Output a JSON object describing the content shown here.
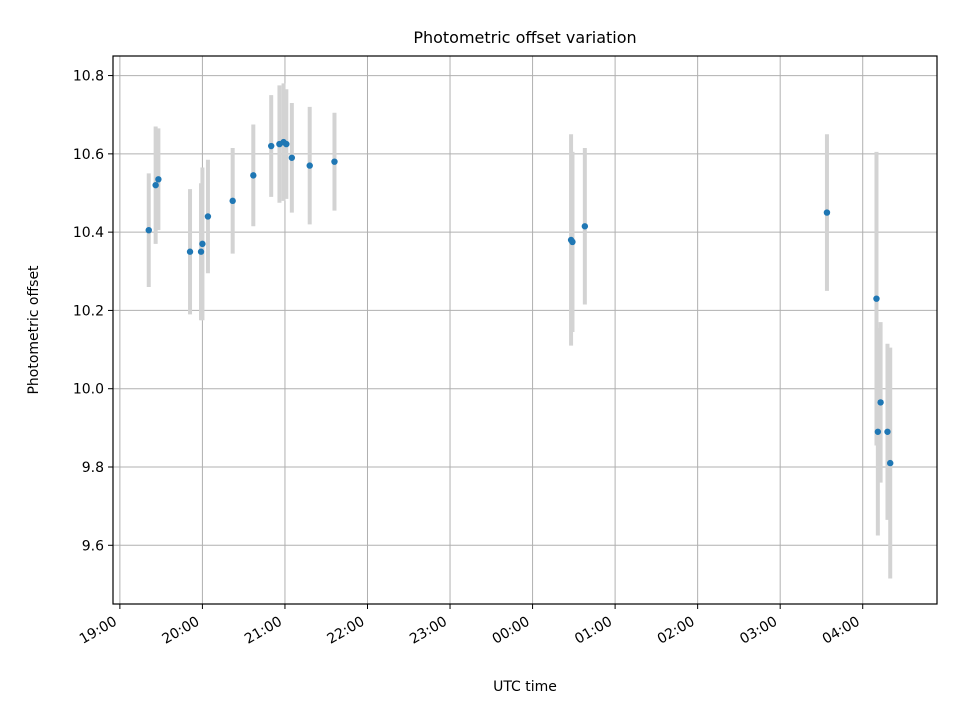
{
  "chart_data": {
    "type": "scatter",
    "title": "Photometric offset variation",
    "xlabel": "UTC time",
    "ylabel": "Photometric offset",
    "x_ticks": [
      "19:00",
      "20:00",
      "21:00",
      "22:00",
      "23:00",
      "00:00",
      "01:00",
      "02:00",
      "03:00",
      "04:00"
    ],
    "x_range": [
      "18:55",
      "04:54"
    ],
    "y_ticks": [
      "9.6",
      "9.8",
      "10.0",
      "10.2",
      "10.4",
      "10.6",
      "10.8"
    ],
    "ylim": [
      9.45,
      10.85
    ],
    "grid": true,
    "colors": {
      "points": "#1f77b4",
      "errorbars": "#d3d3d3",
      "grid": "#b0b0b0"
    },
    "points": [
      {
        "t": "19:21",
        "y": 10.405,
        "err": 0.145
      },
      {
        "t": "19:26",
        "y": 10.52,
        "err": 0.15
      },
      {
        "t": "19:28",
        "y": 10.535,
        "err": 0.13
      },
      {
        "t": "19:51",
        "y": 10.35,
        "err": 0.16
      },
      {
        "t": "19:59",
        "y": 10.35,
        "err": 0.175
      },
      {
        "t": "20:00",
        "y": 10.37,
        "err": 0.195
      },
      {
        "t": "20:04",
        "y": 10.44,
        "err": 0.145
      },
      {
        "t": "20:22",
        "y": 10.48,
        "err": 0.135
      },
      {
        "t": "20:37",
        "y": 10.545,
        "err": 0.13
      },
      {
        "t": "20:50",
        "y": 10.62,
        "err": 0.13
      },
      {
        "t": "20:56",
        "y": 10.625,
        "err": 0.15
      },
      {
        "t": "20:59",
        "y": 10.63,
        "err": 0.15
      },
      {
        "t": "21:01",
        "y": 10.625,
        "err": 0.14
      },
      {
        "t": "21:05",
        "y": 10.59,
        "err": 0.14
      },
      {
        "t": "21:18",
        "y": 10.57,
        "err": 0.15
      },
      {
        "t": "21:36",
        "y": 10.58,
        "err": 0.125
      },
      {
        "t": "00:28",
        "y": 10.38,
        "err": 0.27
      },
      {
        "t": "00:29",
        "y": 10.375,
        "err": 0.23
      },
      {
        "t": "00:38",
        "y": 10.415,
        "err": 0.2
      },
      {
        "t": "03:34",
        "y": 10.45,
        "err": 0.2
      },
      {
        "t": "04:10",
        "y": 10.23,
        "err": 0.375
      },
      {
        "t": "04:11",
        "y": 9.89,
        "err": 0.265
      },
      {
        "t": "04:13",
        "y": 9.965,
        "err": 0.205
      },
      {
        "t": "04:18",
        "y": 9.89,
        "err": 0.225
      },
      {
        "t": "04:20",
        "y": 9.81,
        "err": 0.295
      }
    ]
  }
}
